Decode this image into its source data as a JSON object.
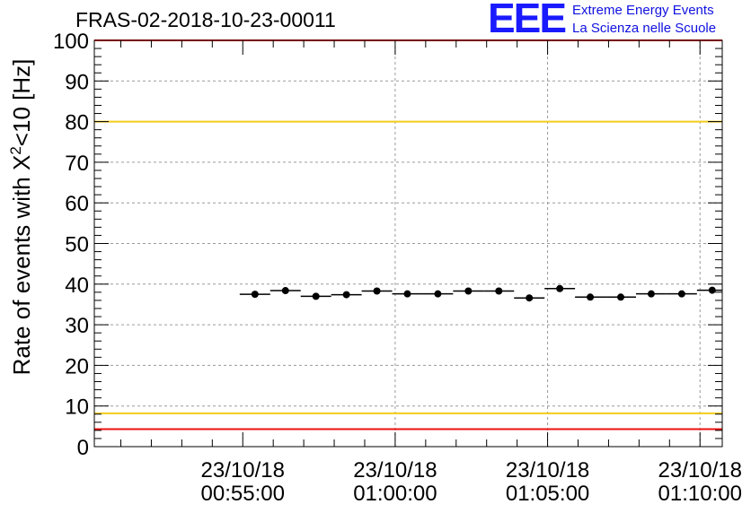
{
  "header": {
    "title": "FRAS-02-2018-10-23-00011",
    "logo_mark": "EEE",
    "logo_line1": "Extreme Energy Events",
    "logo_line2": "La Scienza nelle Scuole"
  },
  "chart_data": {
    "type": "scatter",
    "title": "FRAS-02-2018-10-23-00011",
    "ylabel_main": "Rate of events with X",
    "ylabel_sup": "2",
    "ylabel_tail": "<10 [Hz]",
    "xlabel": "",
    "ylim": [
      0,
      100
    ],
    "yticks": [
      0,
      10,
      20,
      30,
      40,
      50,
      60,
      70,
      80,
      90,
      100
    ],
    "xlim_minutes": [
      -4.87,
      15.73
    ],
    "xticks": [
      {
        "minute": 0,
        "date": "23/10/18",
        "time": "00:55:00"
      },
      {
        "minute": 5,
        "date": "23/10/18",
        "time": "01:00:00"
      },
      {
        "minute": 10,
        "date": "23/10/18",
        "time": "01:05:00"
      },
      {
        "minute": 15,
        "date": "23/10/18",
        "time": "01:10:00"
      }
    ],
    "grid": true,
    "reference_lines": [
      {
        "y": 4.3,
        "color": "#ee1111"
      },
      {
        "y": 8.2,
        "color": "#f2cc1a"
      },
      {
        "y": 80,
        "color": "#f2cc1a"
      },
      {
        "y": 100,
        "color": "#ee1111"
      }
    ],
    "series": [
      {
        "marker_color": "#000000",
        "x_minutes": [
          0.4,
          1.4,
          2.4,
          3.4,
          4.4,
          5.4,
          6.4,
          7.4,
          8.4,
          9.4,
          10.4,
          11.4,
          12.4,
          13.4,
          14.4,
          15.4
        ],
        "x_halfwidth": 0.5,
        "values": [
          37.5,
          38.4,
          37.0,
          37.4,
          38.3,
          37.6,
          37.6,
          38.3,
          38.3,
          36.6,
          38.9,
          36.8,
          36.8,
          37.6,
          37.6,
          38.5
        ]
      }
    ]
  }
}
